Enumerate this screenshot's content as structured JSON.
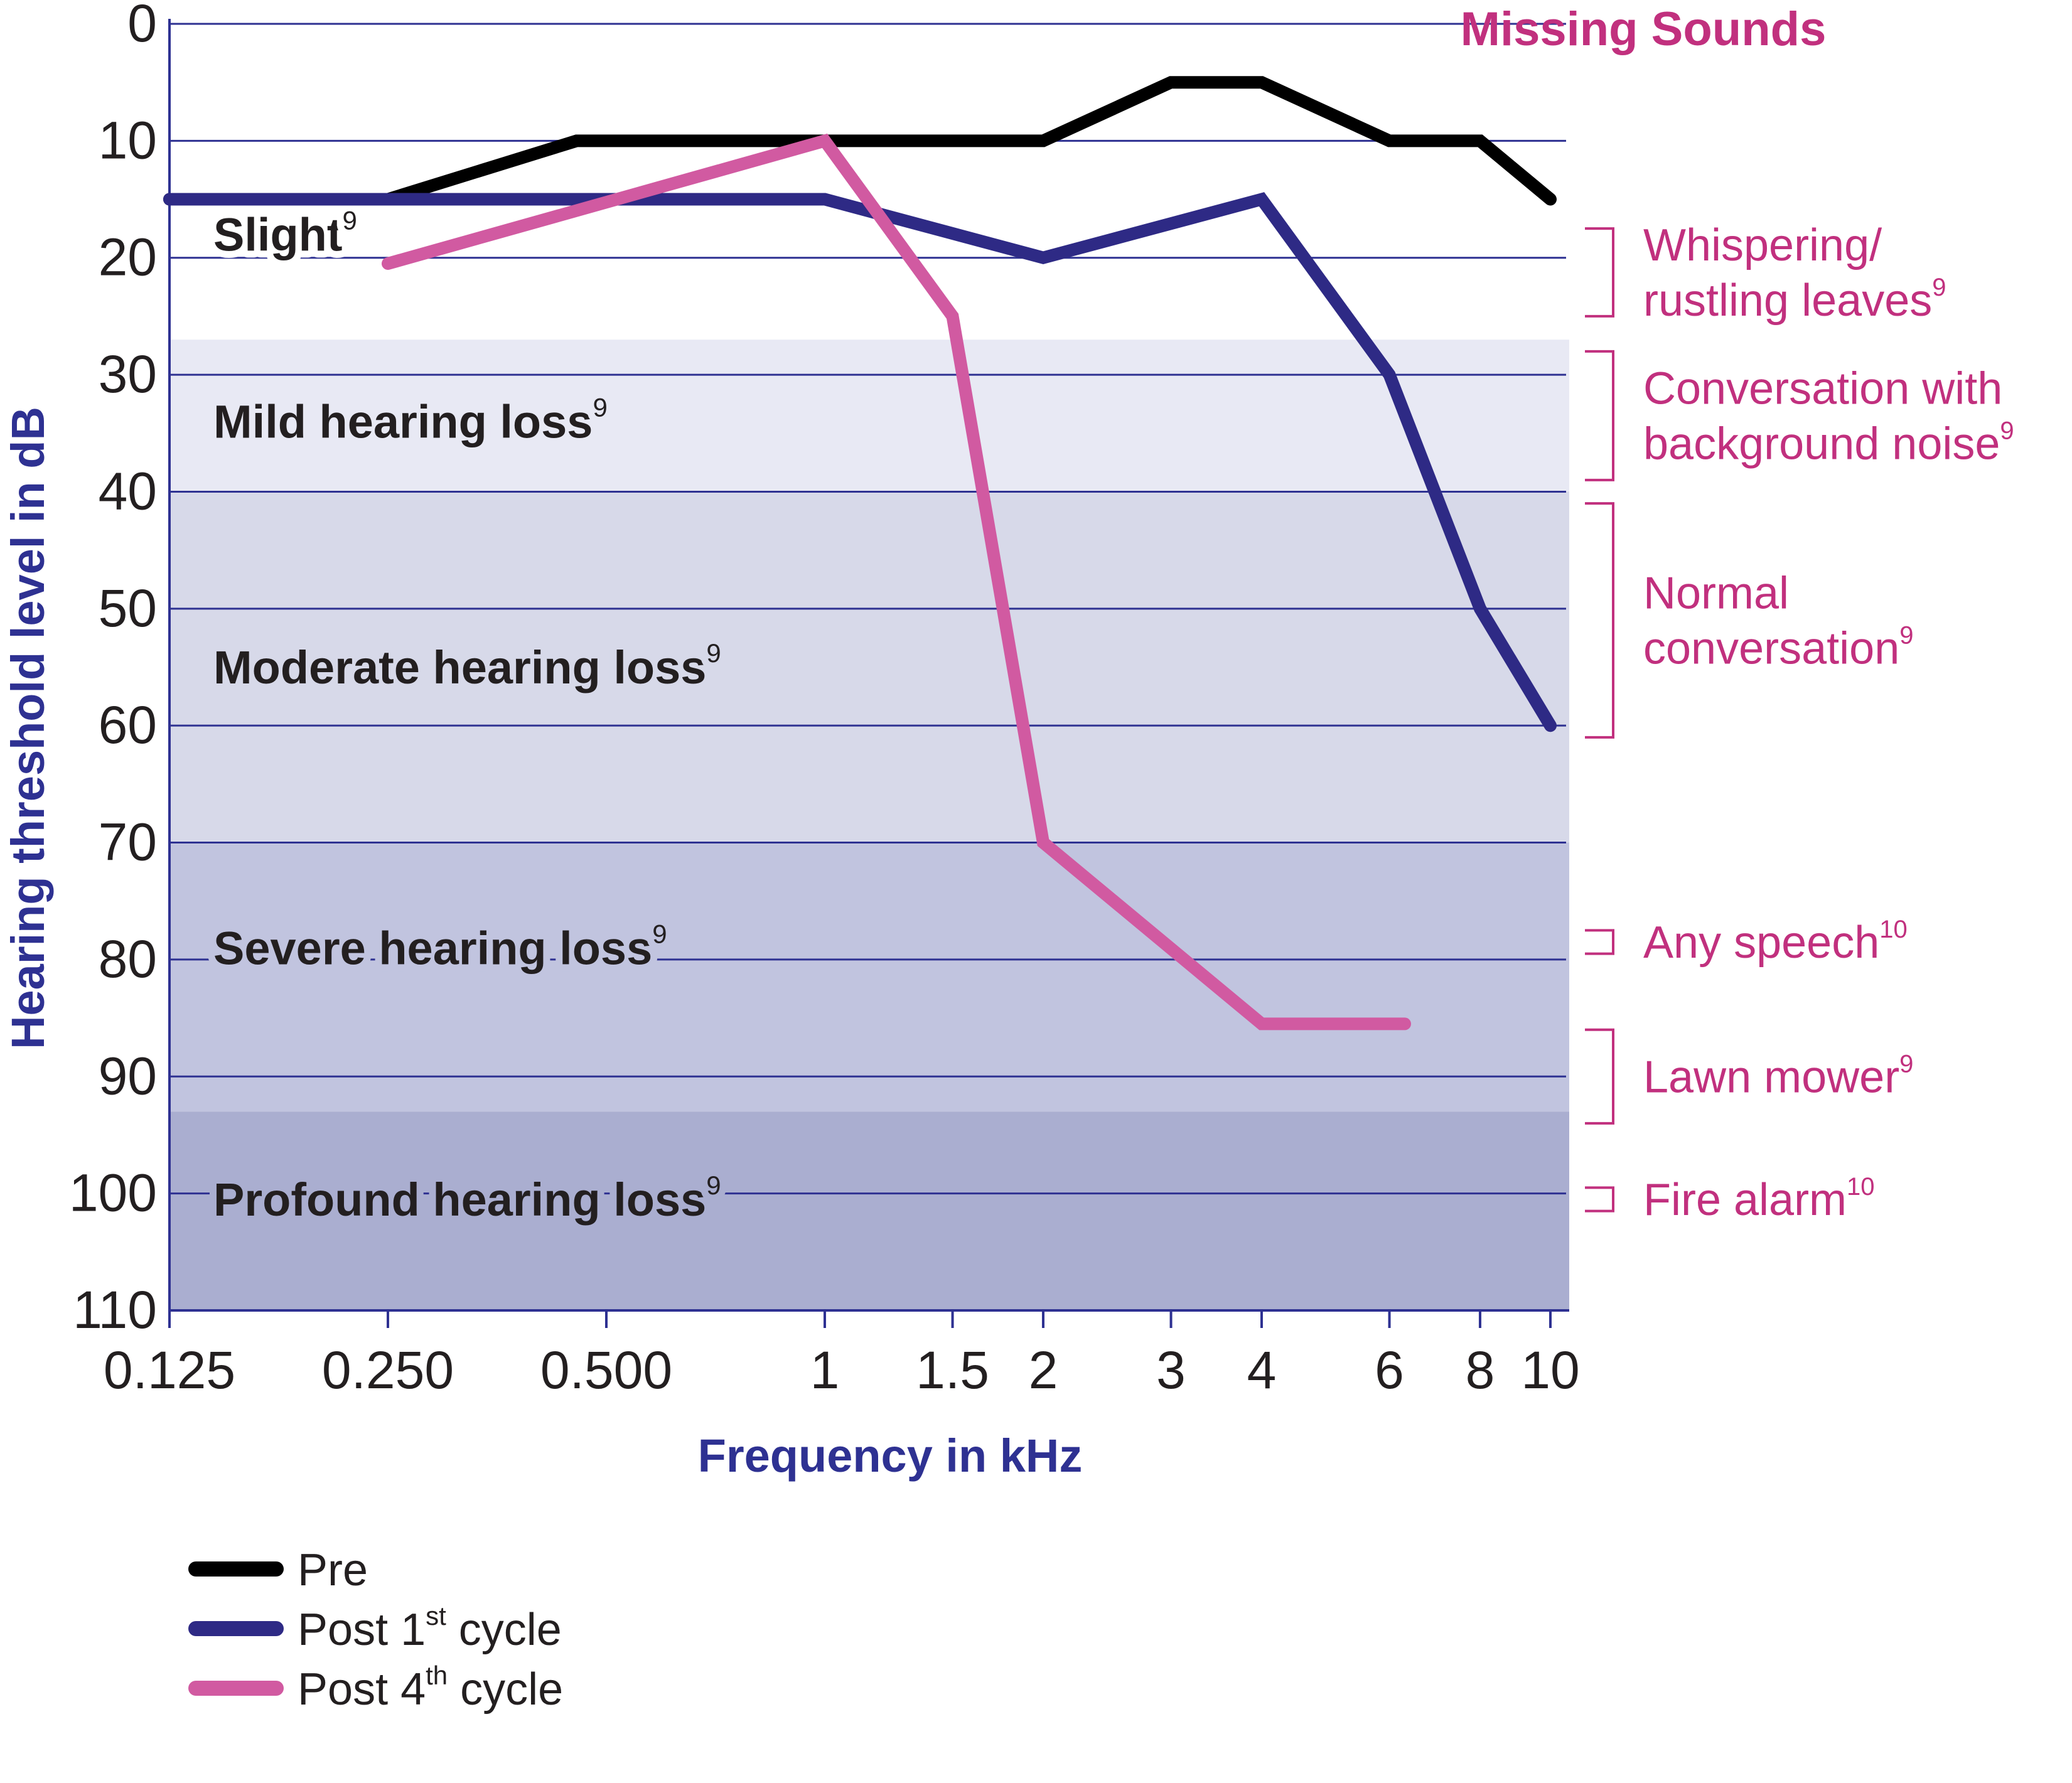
{
  "chart_data": {
    "type": "line",
    "xlabel": "Frequency in kHz",
    "ylabel": "Hearing threshold level in dB",
    "xscale": "log",
    "xlim": [
      0.125,
      10
    ],
    "ylim": [
      0,
      110
    ],
    "y_inverted": true,
    "y_ticks": [
      "0",
      "10",
      "20",
      "30",
      "40",
      "50",
      "60",
      "70",
      "80",
      "90",
      "100",
      "110"
    ],
    "x_ticks": [
      {
        "value": 0.125,
        "label": "0.125"
      },
      {
        "value": 0.25,
        "label": "0.250"
      },
      {
        "value": 0.5,
        "label": "0.500"
      },
      {
        "value": 1,
        "label": "1"
      },
      {
        "value": 1.5,
        "label": "1.5"
      },
      {
        "value": 2,
        "label": "2"
      },
      {
        "value": 3,
        "label": "3"
      },
      {
        "value": 4,
        "label": "4"
      },
      {
        "value": 6,
        "label": "6"
      },
      {
        "value": 8,
        "label": "8"
      },
      {
        "value": 10,
        "label": "10"
      }
    ],
    "bands": [
      {
        "label": "Slight",
        "sup": "9",
        "from": 0,
        "to": 27,
        "label_at": 18,
        "color": "#ffffff"
      },
      {
        "label": "Mild hearing loss",
        "sup": "9",
        "from": 27,
        "to": 40,
        "label_at": 34,
        "color": "#e8e9f4"
      },
      {
        "label": "Moderate hearing loss",
        "sup": "9",
        "from": 40,
        "to": 70,
        "label_at": 55,
        "color": "#d7d9e9"
      },
      {
        "label": "Severe hearing loss",
        "sup": "9",
        "from": 70,
        "to": 93,
        "label_at": 79,
        "color": "#c1c4df"
      },
      {
        "label": "Profound hearing loss",
        "sup": "9",
        "from": 93,
        "to": 110,
        "label_at": 100.5,
        "color": "#aaaed0"
      }
    ],
    "series": [
      {
        "name": "Pre",
        "color": "#000000",
        "x": [
          0.125,
          0.25,
          0.455,
          1,
          2,
          3,
          4,
          6,
          8,
          10
        ],
        "y": [
          15,
          15,
          10,
          10,
          10,
          5,
          5,
          10,
          10,
          15
        ]
      },
      {
        "name": "Post 1st cycle",
        "color": "#2e2a85",
        "x": [
          0.125,
          1,
          2,
          4,
          6,
          8,
          10
        ],
        "y": [
          15,
          15,
          20,
          15,
          30,
          50,
          60
        ]
      },
      {
        "name": "Post 4th cycle",
        "color": "#d15aa1",
        "x": [
          0.25,
          1,
          1.5,
          2,
          4,
          6.3
        ],
        "y": [
          20.5,
          10,
          25,
          70,
          85.5,
          85.5
        ]
      }
    ],
    "legend": [
      {
        "label": "Pre",
        "sup": "",
        "suffix": ""
      },
      {
        "label": "Post 1",
        "sup": "st",
        "suffix": " cycle"
      },
      {
        "label": "Post 4",
        "sup": "th",
        "suffix": " cycle"
      }
    ],
    "legend_position": "bottom-left",
    "missing_sounds": {
      "title": "Missing Sounds",
      "items": [
        {
          "lines": [
            "Whispering/",
            "rustling leaves"
          ],
          "sup": "9",
          "from": 17.5,
          "to": 25
        },
        {
          "lines": [
            "Conversation with",
            "background noise"
          ],
          "sup": "9",
          "from": 28,
          "to": 39
        },
        {
          "lines": [
            "Normal",
            "conversation"
          ],
          "sup": "9",
          "from": 41,
          "to": 61
        },
        {
          "lines": [
            "Any speech"
          ],
          "sup": "10",
          "from": 77.5,
          "to": 79.5
        },
        {
          "lines": [
            "Lawn mower"
          ],
          "sup": "9",
          "from": 86,
          "to": 94
        },
        {
          "lines": [
            "Fire alarm"
          ],
          "sup": "10",
          "from": 99.5,
          "to": 101.5
        }
      ]
    },
    "grid": true,
    "colors": {
      "axis": "#2e3192",
      "gridline": "#2e3192",
      "annotation": "#c1307e",
      "text": "#231f20"
    }
  }
}
